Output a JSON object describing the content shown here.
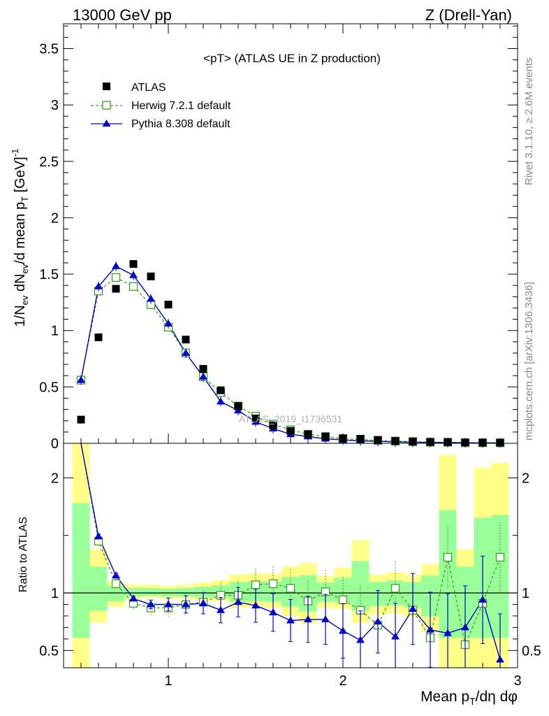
{
  "header": {
    "energy": "13000 GeV pp",
    "process": "Z (Drell-Yan)"
  },
  "side_labels": {
    "rivet": "Rivet 3.1.10, ≥ 2.6M events",
    "mcplots": "mcplots.cern.ch [arXiv:1306.3436]"
  },
  "watermark": "ATLAS_2019_I1736531",
  "colors": {
    "atlas": "#000000",
    "herwig": "#3f9f1f",
    "pythia": "#0000cc",
    "band_outer": "#ffff88",
    "band_inner": "#99ff99"
  },
  "chart_data": [
    {
      "type": "scatter",
      "title": "<pT> (ATLAS UE in Z production)",
      "xlabel": "Mean p_T/dη dφ",
      "ylabel": "1/N_ev dN_ev/d mean p_T [GeV]^-1",
      "xlim": [
        0.4,
        3.0
      ],
      "ylim": [
        0,
        3.72
      ],
      "yticks": [
        "0",
        "0.5",
        "1",
        "1.5",
        "2",
        "2.5",
        "3",
        "3.5"
      ],
      "legend_placement": "top-left",
      "x": [
        0.5,
        0.6,
        0.7,
        0.8,
        0.9,
        1.0,
        1.1,
        1.2,
        1.3,
        1.4,
        1.5,
        1.6,
        1.7,
        1.8,
        1.9,
        2.0,
        2.1,
        2.2,
        2.3,
        2.4,
        2.5,
        2.6,
        2.7,
        2.8,
        2.9
      ],
      "series": [
        {
          "name": "ATLAS",
          "marker": "filled-square",
          "values": [
            0.21,
            0.94,
            1.37,
            1.59,
            1.48,
            1.23,
            0.92,
            0.66,
            0.47,
            0.33,
            0.22,
            0.16,
            0.11,
            0.08,
            0.06,
            0.045,
            0.04,
            0.03,
            0.02,
            0.015,
            0.012,
            0.01,
            0.008,
            0.006,
            0.005
          ]
        },
        {
          "name": "Herwig 7.2.1 default",
          "marker": "open-square",
          "line": "dashed",
          "values": [
            0.56,
            1.35,
            1.47,
            1.39,
            1.23,
            1.03,
            0.8,
            0.59,
            0.45,
            0.33,
            0.24,
            0.17,
            0.12,
            0.08,
            0.06,
            0.04,
            0.035,
            0.025,
            0.02,
            0.015,
            0.01,
            0.01,
            0.005,
            0.005,
            0.005
          ]
        },
        {
          "name": "Pythia 8.308 default",
          "marker": "filled-triangle",
          "line": "solid",
          "values": [
            0.56,
            1.39,
            1.57,
            1.49,
            1.28,
            1.06,
            0.8,
            0.59,
            0.37,
            0.29,
            0.19,
            0.13,
            0.08,
            0.06,
            0.04,
            0.03,
            0.022,
            0.018,
            0.012,
            0.01,
            0.008,
            0.006,
            0.005,
            0.004,
            0.003
          ]
        }
      ]
    },
    {
      "type": "line",
      "ylabel": "Ratio to ATLAS",
      "xlim": [
        0.4,
        3.0
      ],
      "ylim": [
        0.35,
        2.3
      ],
      "xticks": [
        "1",
        "2",
        "3"
      ],
      "yticks": [
        "0.5",
        "1",
        "2"
      ],
      "x": [
        0.5,
        0.6,
        0.7,
        0.8,
        0.9,
        1.0,
        1.1,
        1.2,
        1.3,
        1.4,
        1.5,
        1.6,
        1.7,
        1.8,
        1.9,
        2.0,
        2.1,
        2.2,
        2.3,
        2.4,
        2.5,
        2.6,
        2.7,
        2.8,
        2.9
      ],
      "bands": {
        "outer_low": [
          0.35,
          0.74,
          0.88,
          0.95,
          0.96,
          0.95,
          0.95,
          0.94,
          0.93,
          0.87,
          0.88,
          0.87,
          0.8,
          0.73,
          0.87,
          0.86,
          0.74,
          0.81,
          0.82,
          0.79,
          0.66,
          0.35,
          0.35,
          0.35,
          0.35
        ],
        "outer_high": [
          2.3,
          1.38,
          1.1,
          1.07,
          1.07,
          1.06,
          1.07,
          1.09,
          1.11,
          1.16,
          1.17,
          1.17,
          1.23,
          1.26,
          1.15,
          1.22,
          1.46,
          1.16,
          1.18,
          1.16,
          1.25,
          2.2,
          1.38,
          2.09,
          2.13
        ]
      },
      "series": [
        {
          "name": "Herwig 7.2.1 default",
          "marker": "open-square",
          "line": "dashed",
          "values": [
            2.55,
            1.45,
            1.08,
            0.91,
            0.87,
            0.87,
            0.9,
            0.92,
            0.98,
            0.98,
            1.07,
            1.08,
            1.04,
            0.93,
            1.01,
            0.94,
            0.85,
            0.72,
            1.04,
            0.85,
            0.61,
            1.31,
            0.55,
            0.91,
            1.31
          ]
        },
        {
          "name": "Pythia 8.308 default",
          "marker": "filled-triangle",
          "line": "solid",
          "values": [
            2.65,
            1.49,
            1.15,
            0.95,
            0.9,
            0.9,
            0.9,
            0.91,
            0.85,
            0.92,
            0.89,
            0.83,
            0.76,
            0.77,
            0.77,
            0.67,
            0.59,
            0.75,
            0.62,
            0.86,
            0.68,
            0.65,
            0.7,
            0.94,
            0.42
          ]
        }
      ]
    }
  ]
}
